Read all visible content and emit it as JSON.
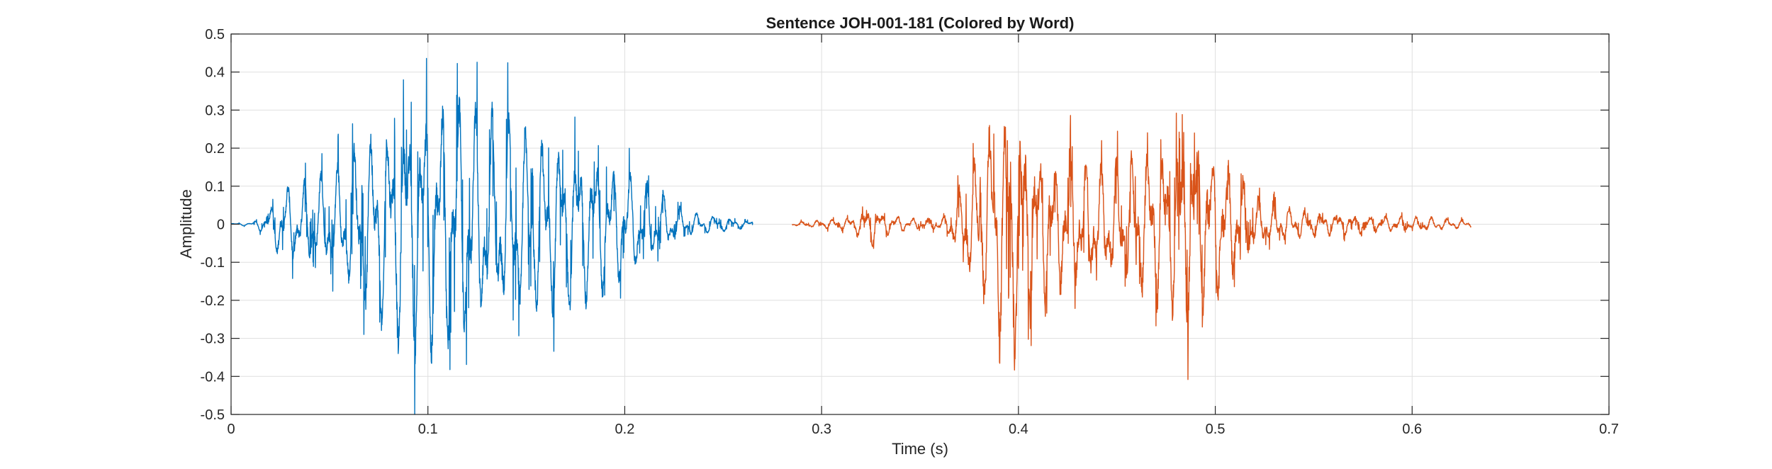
{
  "chart_data": {
    "type": "line",
    "title": "Sentence JOH-001-181 (Colored by Word)",
    "xlabel": "Time (s)",
    "ylabel": "Amplitude",
    "xlim": [
      0,
      0.7
    ],
    "ylim": [
      -0.5,
      0.5
    ],
    "grid": true,
    "x_ticks": [
      "0",
      "0.1",
      "0.2",
      "0.3",
      "0.4",
      "0.5",
      "0.6",
      "0.7"
    ],
    "y_ticks": [
      "0.5",
      "0.4",
      "0.3",
      "0.2",
      "0.1",
      "0",
      "-0.1",
      "-0.2",
      "-0.3",
      "-0.4",
      "-0.5"
    ],
    "series": [
      {
        "color": "#0072BD",
        "time_range": [
          0.0,
          0.265
        ],
        "envelope": [
          [
            0.0,
            0.003
          ],
          [
            0.01,
            0.005
          ],
          [
            0.018,
            0.03
          ],
          [
            0.025,
            0.11
          ],
          [
            0.04,
            0.13
          ],
          [
            0.055,
            0.17
          ],
          [
            0.065,
            0.25
          ],
          [
            0.075,
            0.3
          ],
          [
            0.09,
            0.38
          ],
          [
            0.105,
            0.4
          ],
          [
            0.115,
            0.38
          ],
          [
            0.13,
            0.33
          ],
          [
            0.15,
            0.28
          ],
          [
            0.17,
            0.26
          ],
          [
            0.19,
            0.2
          ],
          [
            0.21,
            0.13
          ],
          [
            0.22,
            0.09
          ],
          [
            0.23,
            0.04
          ],
          [
            0.245,
            0.025
          ],
          [
            0.265,
            0.01
          ]
        ]
      },
      {
        "color": "#D95319",
        "time_range": [
          0.285,
          0.63
        ],
        "envelope": [
          [
            0.285,
            0.005
          ],
          [
            0.3,
            0.012
          ],
          [
            0.315,
            0.02
          ],
          [
            0.325,
            0.06
          ],
          [
            0.332,
            0.03
          ],
          [
            0.35,
            0.015
          ],
          [
            0.362,
            0.02
          ],
          [
            0.37,
            0.1
          ],
          [
            0.38,
            0.22
          ],
          [
            0.39,
            0.36
          ],
          [
            0.398,
            0.38
          ],
          [
            0.405,
            0.28
          ],
          [
            0.42,
            0.2
          ],
          [
            0.44,
            0.17
          ],
          [
            0.46,
            0.2
          ],
          [
            0.48,
            0.26
          ],
          [
            0.49,
            0.3
          ],
          [
            0.5,
            0.22
          ],
          [
            0.51,
            0.16
          ],
          [
            0.525,
            0.06
          ],
          [
            0.55,
            0.035
          ],
          [
            0.58,
            0.025
          ],
          [
            0.61,
            0.02
          ],
          [
            0.63,
            0.01
          ]
        ]
      }
    ]
  }
}
